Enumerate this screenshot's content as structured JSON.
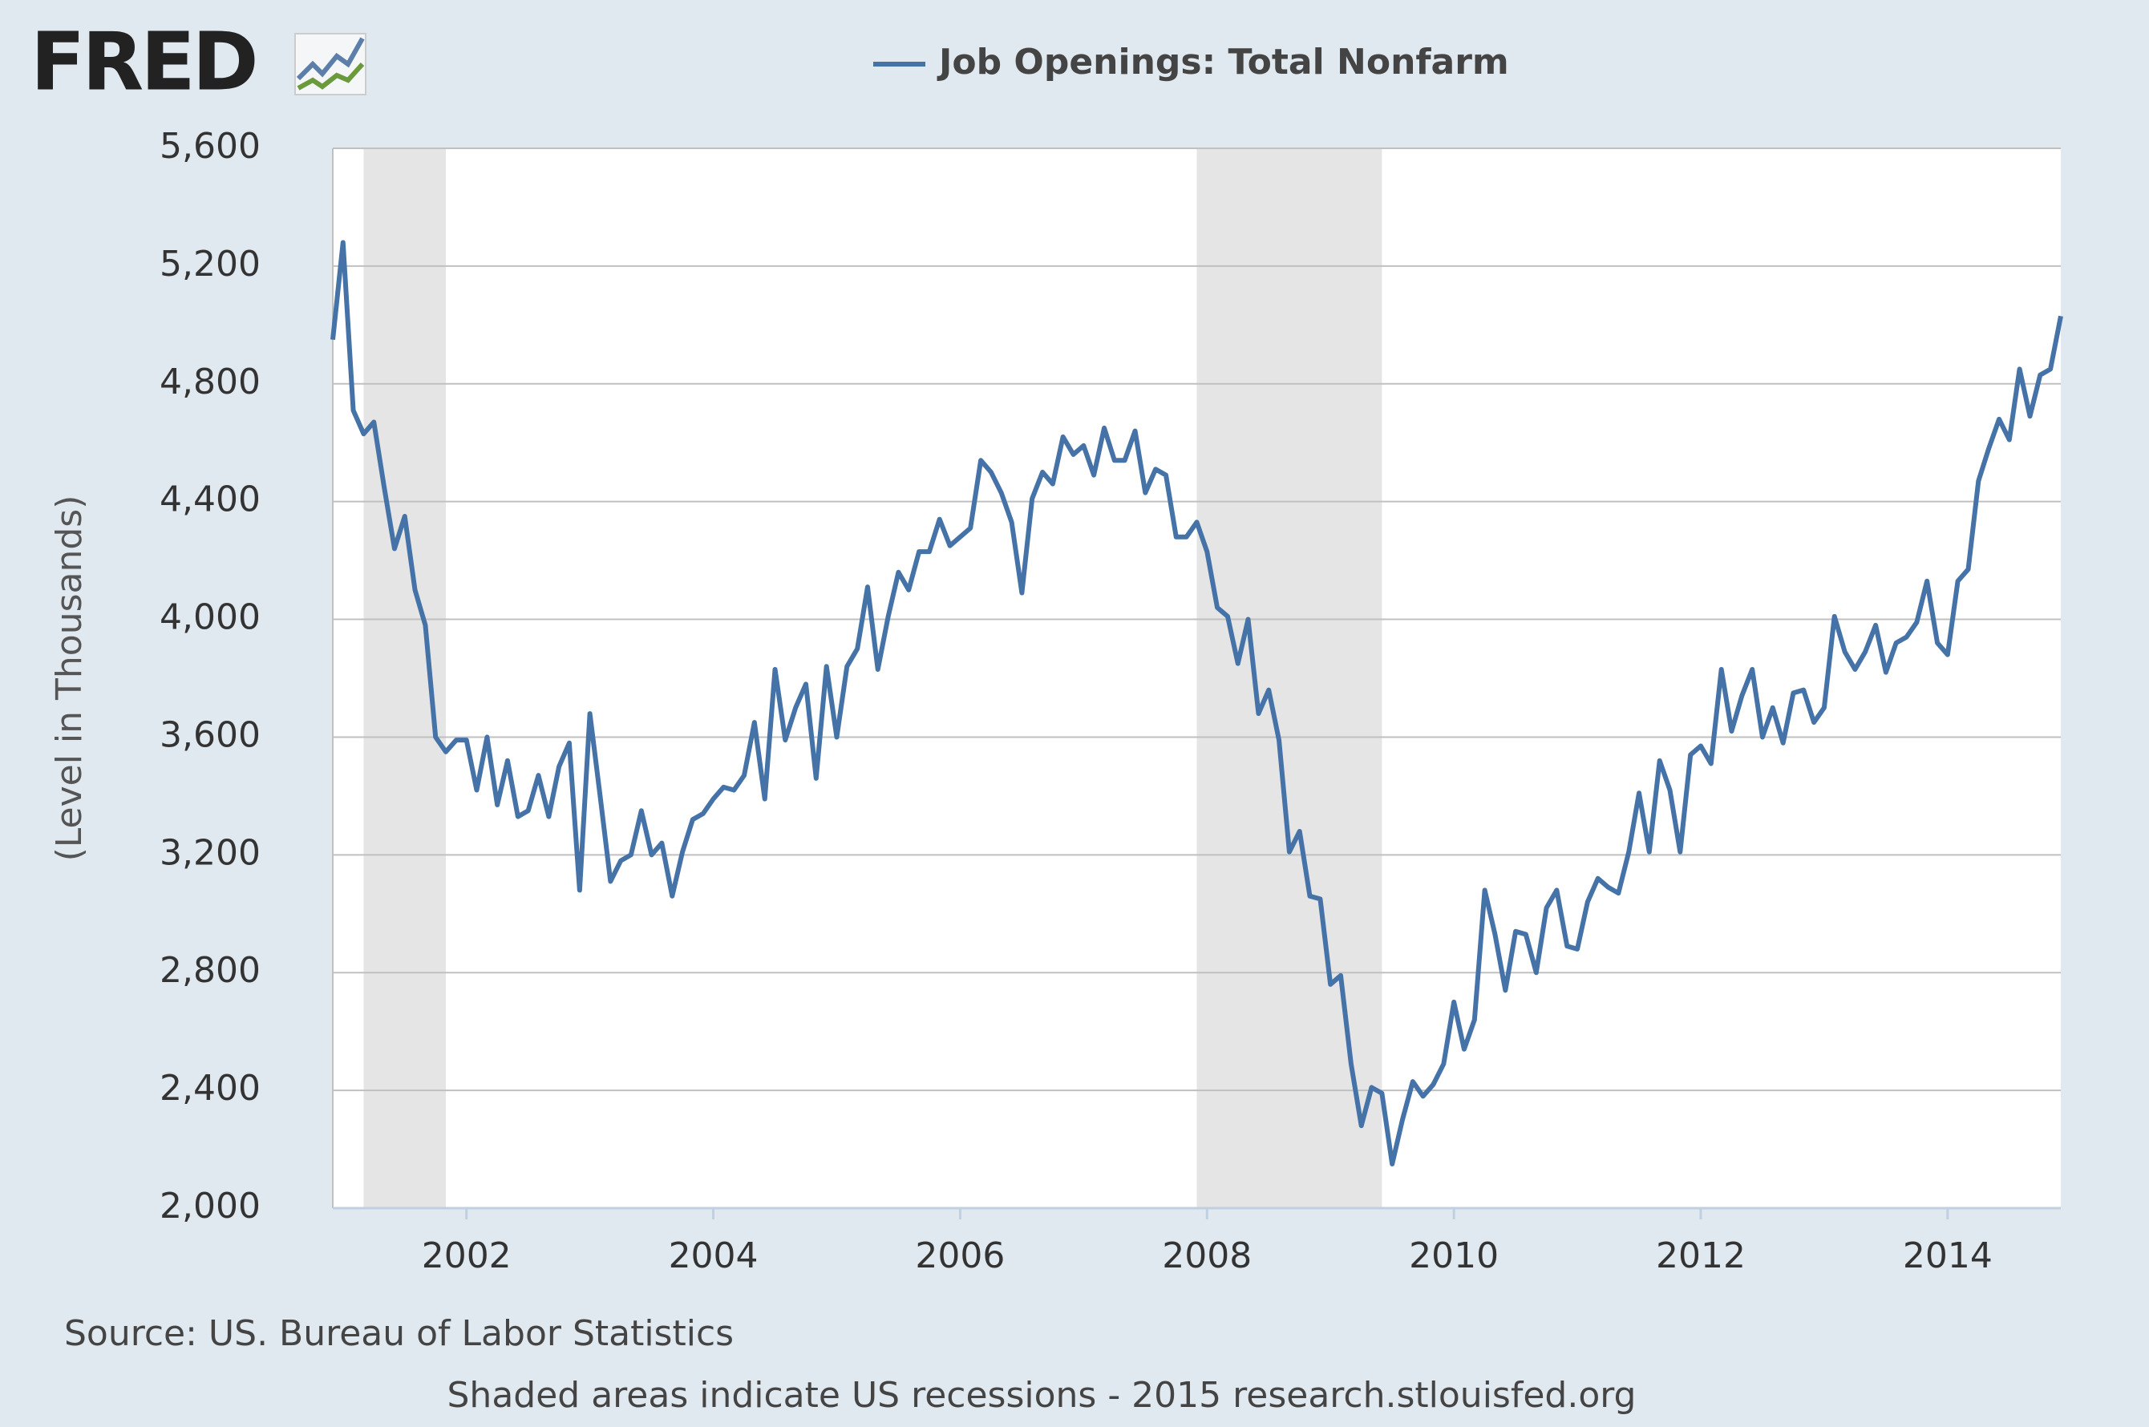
{
  "logo": "FRED",
  "chart_data": {
    "type": "line",
    "y_axis_label": "(Level in Thousands)",
    "source": "Source: US. Bureau of Labor Statistics",
    "note": "Shaded areas indicate US recessions - 2015 research.stlouisfed.org",
    "x": [
      2000.917,
      2001,
      2001.083,
      2001.167,
      2001.25,
      2001.333,
      2001.417,
      2001.5,
      2001.583,
      2001.667,
      2001.75,
      2001.833,
      2001.917,
      2002,
      2002.083,
      2002.167,
      2002.25,
      2002.333,
      2002.417,
      2002.5,
      2002.583,
      2002.667,
      2002.75,
      2002.833,
      2002.917,
      2003,
      2003.083,
      2003.167,
      2003.25,
      2003.333,
      2003.417,
      2003.5,
      2003.583,
      2003.667,
      2003.75,
      2003.833,
      2003.917,
      2004,
      2004.083,
      2004.167,
      2004.25,
      2004.333,
      2004.417,
      2004.5,
      2004.583,
      2004.667,
      2004.75,
      2004.833,
      2004.917,
      2005,
      2005.083,
      2005.167,
      2005.25,
      2005.333,
      2005.417,
      2005.5,
      2005.583,
      2005.667,
      2005.75,
      2005.833,
      2005.917,
      2006,
      2006.083,
      2006.167,
      2006.25,
      2006.333,
      2006.417,
      2006.5,
      2006.583,
      2006.667,
      2006.75,
      2006.833,
      2006.917,
      2007,
      2007.083,
      2007.167,
      2007.25,
      2007.333,
      2007.417,
      2007.5,
      2007.583,
      2007.667,
      2007.75,
      2007.833,
      2007.917,
      2008,
      2008.083,
      2008.167,
      2008.25,
      2008.333,
      2008.417,
      2008.5,
      2008.583,
      2008.667,
      2008.75,
      2008.833,
      2008.917,
      2009,
      2009.083,
      2009.167,
      2009.25,
      2009.333,
      2009.417,
      2009.5,
      2009.583,
      2009.667,
      2009.75,
      2009.833,
      2009.917,
      2010,
      2010.083,
      2010.167,
      2010.25,
      2010.333,
      2010.417,
      2010.5,
      2010.583,
      2010.667,
      2010.75,
      2010.833,
      2010.917,
      2011,
      2011.083,
      2011.167,
      2011.25,
      2011.333,
      2011.417,
      2011.5,
      2011.583,
      2011.667,
      2011.75,
      2011.833,
      2011.917,
      2012,
      2012.083,
      2012.167,
      2012.25,
      2012.333,
      2012.417,
      2012.5,
      2012.583,
      2012.667,
      2012.75,
      2012.833,
      2012.917,
      2013,
      2013.083,
      2013.167,
      2013.25,
      2013.333,
      2013.417,
      2013.5,
      2013.583,
      2013.667,
      2013.75,
      2013.833,
      2013.917,
      2014,
      2014.083,
      2014.167,
      2014.25,
      2014.333,
      2014.417,
      2014.5,
      2014.583,
      2014.667,
      2014.75,
      2014.833,
      2014.917
    ],
    "series": [
      {
        "name": "Job Openings: Total Nonfarm",
        "color": "#4572a7",
        "values": [
          4950,
          5280,
          4710,
          4630,
          4670,
          4450,
          4240,
          4350,
          4100,
          3980,
          3600,
          3550,
          3590,
          3590,
          3420,
          3600,
          3370,
          3520,
          3330,
          3350,
          3470,
          3330,
          3500,
          3580,
          3080,
          3680,
          3400,
          3110,
          3180,
          3200,
          3350,
          3200,
          3240,
          3060,
          3210,
          3320,
          3340,
          3390,
          3430,
          3420,
          3470,
          3650,
          3390,
          3830,
          3590,
          3700,
          3780,
          3460,
          3840,
          3600,
          3840,
          3900,
          4110,
          3830,
          4010,
          4160,
          4100,
          4230,
          4230,
          4340,
          4250,
          4280,
          4310,
          4540,
          4500,
          4430,
          4330,
          4090,
          4410,
          4500,
          4460,
          4620,
          4560,
          4590,
          4490,
          4650,
          4540,
          4540,
          4640,
          4430,
          4510,
          4490,
          4280,
          4280,
          4330,
          4230,
          4040,
          4010,
          3850,
          4000,
          3680,
          3760,
          3590,
          3210,
          3280,
          3060,
          3050,
          2760,
          2790,
          2490,
          2280,
          2410,
          2390,
          2150,
          2300,
          2430,
          2380,
          2420,
          2490,
          2700,
          2540,
          2640,
          3080,
          2930,
          2740,
          2940,
          2930,
          2800,
          3020,
          3080,
          2890,
          2880,
          3040,
          3120,
          3090,
          3070,
          3210,
          3410,
          3210,
          3520,
          3420,
          3210,
          3540,
          3570,
          3510,
          3830,
          3620,
          3740,
          3830,
          3600,
          3700,
          3580,
          3750,
          3760,
          3650,
          3700,
          4010,
          3890,
          3830,
          3890,
          3980,
          3820,
          3920,
          3940,
          3990,
          4130,
          3920,
          3880,
          4130,
          4170,
          4470,
          4580,
          4680,
          4610,
          4850,
          4690,
          4830,
          4850,
          5030
        ]
      }
    ],
    "recessions": [
      [
        2001.167,
        2001.833
      ],
      [
        2007.917,
        2009.417
      ]
    ],
    "xlim": [
      2000.917,
      2014.917
    ],
    "xticks": [
      2002,
      2004,
      2006,
      2008,
      2010,
      2012,
      2014
    ],
    "ylim": [
      2000,
      5600
    ],
    "yticks": [
      {
        "value": 2000,
        "label": "2,000"
      },
      {
        "value": 2400,
        "label": "2,400"
      },
      {
        "value": 2800,
        "label": "2,800"
      },
      {
        "value": 3200,
        "label": "3,200"
      },
      {
        "value": 3600,
        "label": "3,600"
      },
      {
        "value": 4000,
        "label": "4,000"
      },
      {
        "value": 4400,
        "label": "4,400"
      },
      {
        "value": 4800,
        "label": "4,800"
      },
      {
        "value": 5200,
        "label": "5,200"
      },
      {
        "value": 5600,
        "label": "5,600"
      }
    ],
    "grid": true
  }
}
